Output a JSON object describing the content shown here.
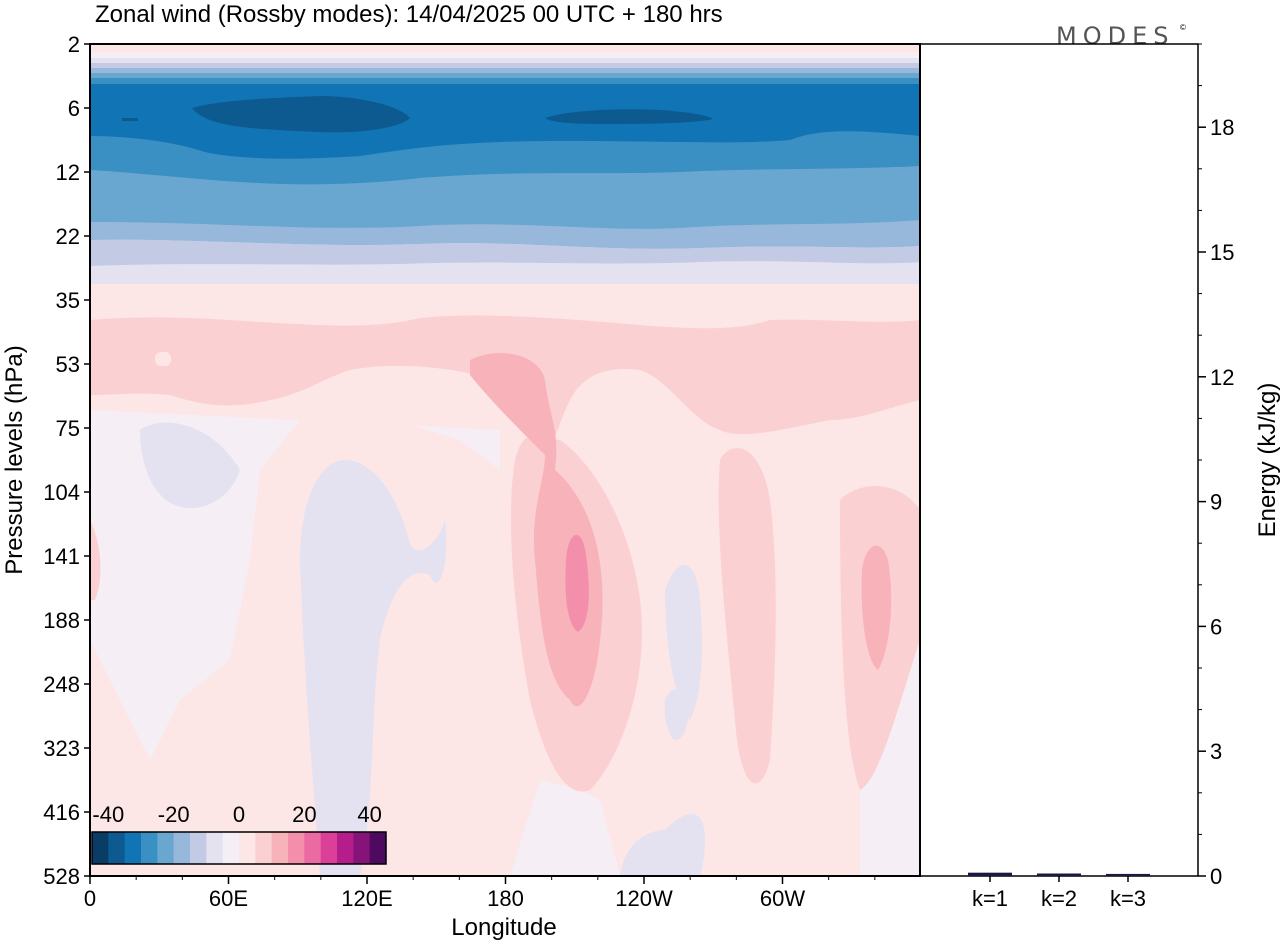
{
  "chart_data": {
    "type": "heatmap",
    "title": "Zonal wind (Rossby modes):  14/04/2025  00 UTC  + 180 hrs",
    "logo": "MODES",
    "logo_mark": "©",
    "xlabel": "Longitude",
    "ylabel": "Pressure levels (hPa)",
    "x_ticks": [
      "0",
      "60E",
      "120E",
      "180",
      "120W",
      "60W"
    ],
    "y_ticks": [
      "2",
      "6",
      "12",
      "22",
      "35",
      "53",
      "75",
      "104",
      "141",
      "188",
      "248",
      "323",
      "416",
      "528"
    ],
    "colorbar": {
      "tick_labels": [
        "-40",
        "-20",
        "0",
        "20",
        "40"
      ],
      "colors": [
        "#0a3d66",
        "#0c5a8f",
        "#1174b4",
        "#3a8fc3",
        "#6aa7d0",
        "#98b8db",
        "#c3cae4",
        "#e4e2f0",
        "#f6eef5",
        "#fde6e6",
        "#fbd0d2",
        "#f8b2ba",
        "#f38fab",
        "#ec6aa3",
        "#dc3f98",
        "#b51d8a",
        "#85137a",
        "#4d0a5e"
      ],
      "range": [
        -45,
        45
      ]
    },
    "energy_panel": {
      "ylabel": "Energy (kJ/kg)",
      "y_ticks": [
        "0",
        "3",
        "6",
        "9",
        "12",
        "15",
        "18"
      ],
      "ylim": [
        0,
        20
      ],
      "categories": [
        "k=1",
        "k=2",
        "k=3"
      ],
      "values": [
        0.08,
        0.06,
        0.05
      ],
      "bar_color": "#1a1a40"
    },
    "field_summary": {
      "upper_easterly_core_min": -42,
      "jet_band_levels": [
        "2",
        "6",
        "12",
        "22"
      ],
      "westerly_max_near_180_140W": 18
    }
  }
}
